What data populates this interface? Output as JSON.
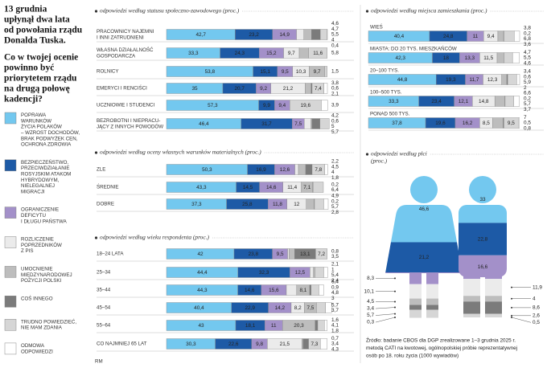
{
  "heading": [
    "13 grudnia",
    "upłynął dwa lata",
    "od powołania rządu",
    "Donalda Tuska."
  ],
  "question": [
    "Co w twojej ocenie",
    "powinno być",
    "priorytetem rządu",
    "na drugą połowę",
    "kadencji?"
  ],
  "legend": [
    {
      "lines": [
        "POPRAWA",
        "WARUNKÓW",
        "ŻYCIA POLAKÓW",
        "– WZROST DOCHODÓW,",
        "BRAK PODWYŻEK CEN,",
        "OCHRONA ZDROWIA"
      ],
      "color": "#73c8ef"
    },
    {
      "lines": [
        "BEZPIECZEŃSTWO,",
        "PRZECIWDZIAŁANIE",
        "ROSYJSKIM ATAKOM",
        "HYBRYDOWYM,",
        "NIELEGALNEJ",
        "MIGRACJI"
      ],
      "color": "#1d5aa6"
    },
    {
      "lines": [
        "OGRANICZENIE",
        "DEFICYTU",
        "I DŁUGU PAŃSTWA"
      ],
      "color": "#a390c9"
    },
    {
      "lines": [
        "ROZLICZENIE",
        "POPRZEDNIKÓW",
        "Z PIS"
      ],
      "color": "#ebebeb"
    },
    {
      "lines": [
        "UMOCNIENIE",
        "MIĘDZYNARODOWEJ",
        "POZYCJI POLSKI"
      ],
      "color": "#bdbdbd"
    },
    {
      "lines": [
        "COŚ INNEGO"
      ],
      "color": "#7b7b7b"
    },
    {
      "lines": [
        "TRUDNO POWIEDZIEĆ,",
        "NIE MAM ZDANIA"
      ],
      "color": "#d6d6d6"
    },
    {
      "lines": [
        "ODMOWA",
        "ODPOWIEDZI"
      ],
      "color": "#ffffff"
    }
  ],
  "chart_data": [
    {
      "type": "stacked_bar",
      "subtitle": [
        "odpowiedzi według statusu społeczno-zawodowego (proc.)"
      ],
      "rows": [
        {
          "label": [
            "PRACOWNICY NAJEMNI",
            "I INNI ZATRUDNIENI"
          ],
          "values": [
            42.7,
            23.2,
            14.9,
            4.6,
            4.7,
            5.5,
            4,
            0.4
          ],
          "value_labels": [
            "42,7",
            "23,2",
            "14,9",
            "4,6",
            "4,7",
            "5,5",
            "4",
            "0,4"
          ]
        },
        {
          "label": [
            "WŁASNA DZIAŁALNOŚĆ",
            "GOSPODARCZA"
          ],
          "values": [
            33.3,
            24.3,
            15.2,
            9.7,
            5.8,
            null,
            11.6,
            null
          ],
          "value_labels": [
            "33,3",
            "24,3",
            "15,2",
            "9,7",
            "5,8",
            null,
            "11,6",
            null
          ]
        },
        {
          "label": [
            "ROLNICY"
          ],
          "values": [
            53.8,
            15.1,
            9.5,
            10.3,
            9.7,
            null,
            1.5,
            null
          ],
          "value_labels": [
            "53,8",
            "15,1",
            "9,5",
            "10,3",
            "9,7",
            null,
            "1,5",
            null
          ]
        },
        {
          "label": [
            "EMERYCI I RENCIŚCI"
          ],
          "values": [
            35,
            20.7,
            9.2,
            21.2,
            3.8,
            0.6,
            7.4,
            2.1
          ],
          "value_labels": [
            "35",
            "20,7",
            "9,2",
            "21,2",
            "3,8",
            "0,6",
            "7,4",
            "2,1"
          ]
        },
        {
          "label": [
            "UCZNIOWIE I STUDENCI"
          ],
          "values": [
            57.3,
            9.9,
            9.4,
            null,
            null,
            null,
            19.6,
            3.9
          ],
          "value_labels": [
            "57,3",
            "9,9",
            "9,4",
            null,
            null,
            null,
            "19,6",
            "3,9"
          ]
        },
        {
          "label": [
            "BEZROBOTNI I NIEPRACU-",
            "JĄCY Z INNYCH POWODÓW"
          ],
          "values": [
            46.4,
            31.7,
            7.5,
            4.2,
            0.6,
            5,
            5.7,
            null
          ],
          "value_labels": [
            "46,4",
            "31,7",
            "7,5",
            "4,2",
            "0,6",
            "5",
            "5,7",
            null
          ]
        }
      ]
    },
    {
      "type": "stacked_bar",
      "subtitle": [
        "odpowiedzi według oceny własnych warunków materialnych (proc.)"
      ],
      "rows": [
        {
          "label": [
            "ZLE"
          ],
          "values": [
            50.3,
            16.9,
            12.6,
            2.2,
            4.5,
            4,
            7.8,
            1.8
          ],
          "value_labels": [
            "50,3",
            "16,9",
            "12,6",
            "2,2",
            "4,5",
            "4",
            "7,8",
            "1,8"
          ]
        },
        {
          "label": [
            "ŚREDNIE"
          ],
          "values": [
            43.3,
            14.5,
            14.6,
            11.4,
            7.1,
            0.2,
            6.4,
            null
          ],
          "value_labels": [
            "43,3",
            "14,5",
            "14,6",
            "11,4",
            "7,1",
            "0,2",
            "6,4",
            null
          ]
        },
        {
          "label": [
            "DOBRE"
          ],
          "values": [
            37.3,
            25.8,
            11.8,
            12,
            4.9,
            0.2,
            5.7,
            2.8
          ],
          "value_labels": [
            "37,3",
            "25,8",
            "11,8",
            "12",
            "4,9",
            "0,2",
            "5,7",
            "2,8"
          ]
        }
      ]
    },
    {
      "type": "stacked_bar",
      "subtitle": [
        "odpowiedzi według wieku respondenta (proc.)"
      ],
      "rows": [
        {
          "label": [
            "18–24 LATA"
          ],
          "values": [
            42,
            23.8,
            9.5,
            0.8,
            3.5,
            13.1,
            7.2,
            null
          ],
          "value_labels": [
            "42",
            "23,8",
            "9,5",
            "0,8",
            "3,5",
            "13,1",
            "7,2",
            null
          ]
        },
        {
          "label": [
            "25–34"
          ],
          "values": [
            44.4,
            32.3,
            12.5,
            2.1,
            1,
            null,
            5.4,
            2.4
          ],
          "value_labels": [
            "44,4",
            "32,3",
            "12,5",
            "2,1",
            "1",
            null,
            "5,4",
            "2,4"
          ]
        },
        {
          "label": [
            "35–44"
          ],
          "values": [
            44.3,
            14.6,
            15.6,
            6.4,
            8.1,
            0.9,
            4.8,
            3
          ],
          "value_labels": [
            "44,3",
            "14,6",
            "15,6",
            "6,4",
            "8,1",
            "0,9",
            "4,8",
            "3"
          ]
        },
        {
          "label": [
            "45–54"
          ],
          "values": [
            40.4,
            22.9,
            14.2,
            8.2,
            7.5,
            null,
            5.7,
            3.7
          ],
          "value_labels": [
            "40,4",
            "22,9",
            "14,2",
            "8,2",
            "7,5",
            null,
            "5,7",
            "3,7"
          ]
        },
        {
          "label": [
            "55–64"
          ],
          "values": [
            43,
            18.1,
            11,
            null,
            20.3,
            1.6,
            4.1,
            1.8
          ],
          "value_labels": [
            "43",
            "18,1",
            "11",
            null,
            "20,3",
            "1,6",
            "4,1",
            "1,8"
          ]
        },
        {
          "label": [
            "CO NAJMNIEJ 65 LAT"
          ],
          "values": [
            30.3,
            22.6,
            9.8,
            21.5,
            0.7,
            3.4,
            7.3,
            4.3
          ],
          "value_labels": [
            "30,3",
            "22,6",
            "9,8",
            "21,5",
            "0,7",
            "3,4",
            "7,3",
            "4,3"
          ]
        }
      ]
    },
    {
      "type": "stacked_bar",
      "subtitle": [
        "odpowiedzi według miejsca zamieszkania (proc.)"
      ],
      "rows": [
        {
          "label": [
            "WIEŚ"
          ],
          "values": [
            40.4,
            24.8,
            11,
            9.4,
            3.8,
            0.2,
            6.8,
            3.6
          ],
          "value_labels": [
            "40,4",
            "24,8",
            "11",
            "9,4",
            "3,8",
            "0,2",
            "6,8",
            "3,6"
          ]
        },
        {
          "label": [
            "MIASTA: DO 20 TYS. MIESZKAŃCÓW"
          ],
          "values": [
            42.3,
            18,
            13.3,
            11.5,
            4.7,
            null,
            5.5,
            4.6
          ],
          "value_labels": [
            "42,3",
            "18",
            "13,3",
            "11,5",
            "4,7",
            null,
            "5,5",
            "4,6"
          ]
        },
        {
          "label": [
            "20–100 TYS."
          ],
          "values": [
            44.8,
            19.3,
            11.7,
            12.3,
            3.4,
            0.6,
            5.9,
            2
          ],
          "value_labels": [
            "44,8",
            "19,3",
            "11,7",
            "12,3",
            "3,4",
            "0,6",
            "5,9",
            "2"
          ]
        },
        {
          "label": [
            "100–500 TYS."
          ],
          "values": [
            33.3,
            23.4,
            12.1,
            14.8,
            6.6,
            0.2,
            5.7,
            3.7
          ],
          "value_labels": [
            "33,3",
            "23,4",
            "12,1",
            "14,8",
            "6,6",
            "0,2",
            "5,7",
            "3,7"
          ]
        },
        {
          "label": [
            "PONAD 500 TYS."
          ],
          "values": [
            37.8,
            19.6,
            16.2,
            8.5,
            7,
            0.5,
            9.5,
            0.8
          ],
          "value_labels": [
            "37,8",
            "19,6",
            "16,2",
            "8,5",
            "7",
            "0,5",
            "9,5",
            "0,8"
          ]
        }
      ]
    },
    {
      "type": "figure",
      "subtitle": [
        "odpowiedzi według płci",
        "(proc.)"
      ],
      "rows": [
        {
          "values": [
            46.6,
            21.2,
            8.3,
            10.1,
            4.5,
            3.4,
            5.7,
            0.3
          ],
          "value_labels": [
            "46,6",
            "21,2",
            "8,3",
            "10,1",
            "4,5",
            "3,4",
            "5,7",
            "0,3"
          ]
        },
        {
          "values": [
            33,
            22.8,
            16.6,
            11.9,
            4,
            8.6,
            2.6,
            0.5
          ],
          "value_labels": [
            "33",
            "22,8",
            "16,6",
            "11,9",
            "4",
            "8,6",
            "2,6",
            "0,5"
          ]
        }
      ]
    }
  ],
  "source": [
    "Źródło: badanie CBOS dla DGP zrealizowane 1–3 grudnia 2025 r.",
    "metodą CATI na kwotowej, ogólnopolskiej próbie reprezentatywnej",
    "osób po 18. roku życia (1000 wywiadów)"
  ],
  "credit": "RM"
}
